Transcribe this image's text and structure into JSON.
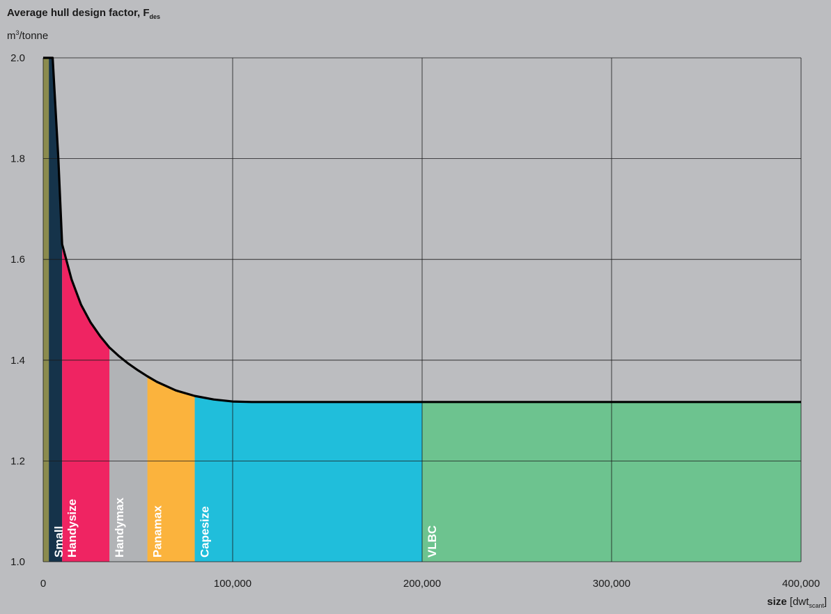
{
  "chart_data": {
    "type": "area",
    "title": "Average hull design factor, F",
    "title_subscript": "des",
    "y_unit_base": "m",
    "y_unit_sup": "3",
    "y_unit_rest": "/tonne",
    "xlabel_bold": "size",
    "xlabel_unit_open": "[dwt",
    "xlabel_unit_sub": "scant",
    "xlabel_unit_close": "]",
    "xlim": [
      0,
      400000
    ],
    "ylim": [
      1.0,
      2.0
    ],
    "x_ticks": [
      0,
      100000,
      200000,
      300000,
      400000
    ],
    "x_tick_labels": [
      "0",
      "100,000",
      "200,000",
      "300,000",
      "400,000"
    ],
    "y_ticks": [
      1.0,
      1.2,
      1.4,
      1.6,
      1.8,
      2.0
    ],
    "y_tick_labels": [
      "1.0",
      "1.2",
      "1.4",
      "1.6",
      "1.8",
      "2.0"
    ],
    "grid": true,
    "curve": {
      "x": [
        0,
        5000,
        8000,
        10000,
        15000,
        20000,
        25000,
        30000,
        35000,
        40000,
        45000,
        50000,
        55000,
        60000,
        70000,
        80000,
        90000,
        100000,
        110000,
        150000,
        200000,
        300000,
        400000
      ],
      "y": [
        2.0,
        2.0,
        1.8,
        1.63,
        1.56,
        1.51,
        1.475,
        1.448,
        1.425,
        1.408,
        1.393,
        1.38,
        1.368,
        1.357,
        1.34,
        1.329,
        1.322,
        1.318,
        1.317,
        1.317,
        1.317,
        1.317,
        1.317
      ]
    },
    "regions": [
      {
        "name": "",
        "x0": 0,
        "x1": 3000,
        "color": "#8b8b4e"
      },
      {
        "name": "Small",
        "x0": 3000,
        "x1": 10000,
        "color": "#15334a"
      },
      {
        "name": "Handysize",
        "x0": 10000,
        "x1": 35000,
        "color": "#ef2462"
      },
      {
        "name": "Handymax",
        "x0": 35000,
        "x1": 55000,
        "color": "#b1b3b6"
      },
      {
        "name": "Panamax",
        "x0": 55000,
        "x1": 80000,
        "color": "#fbb33d"
      },
      {
        "name": "Capesize",
        "x0": 80000,
        "x1": 200000,
        "color": "#20bedb"
      },
      {
        "name": "VLBC",
        "x0": 200000,
        "x1": 400000,
        "color": "#6dc38f"
      }
    ]
  }
}
